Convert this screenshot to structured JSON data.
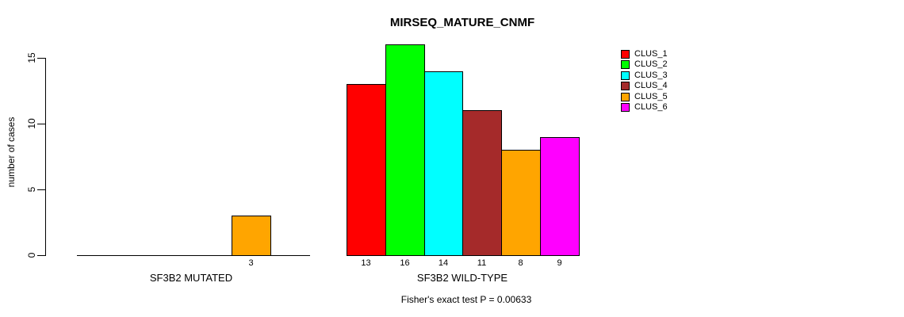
{
  "chart_data": {
    "type": "bar",
    "title": "MIRSEQ_MATURE_CNMF",
    "ylabel": "number of cases",
    "ylim": [
      0,
      16.8
    ],
    "yticks": [
      0,
      5,
      10,
      15
    ],
    "grid": false,
    "legend_position": "right",
    "legend": [
      "CLUS_1",
      "CLUS_2",
      "CLUS_3",
      "CLUS_4",
      "CLUS_5",
      "CLUS_6"
    ],
    "colors": [
      "#FF0000",
      "#00FF00",
      "#00FFFF",
      "#A52A2A",
      "#FFA500",
      "#FF00FF"
    ],
    "bar_border_color": "#000000",
    "groups": [
      {
        "label": "SF3B2 MUTATED",
        "values": [
          0,
          0,
          0,
          0,
          3,
          0
        ]
      },
      {
        "label": "SF3B2 WILD-TYPE",
        "values": [
          13,
          16,
          14,
          11,
          8,
          9
        ]
      }
    ],
    "annotation": "Fisher's exact test P = 0.00633"
  }
}
